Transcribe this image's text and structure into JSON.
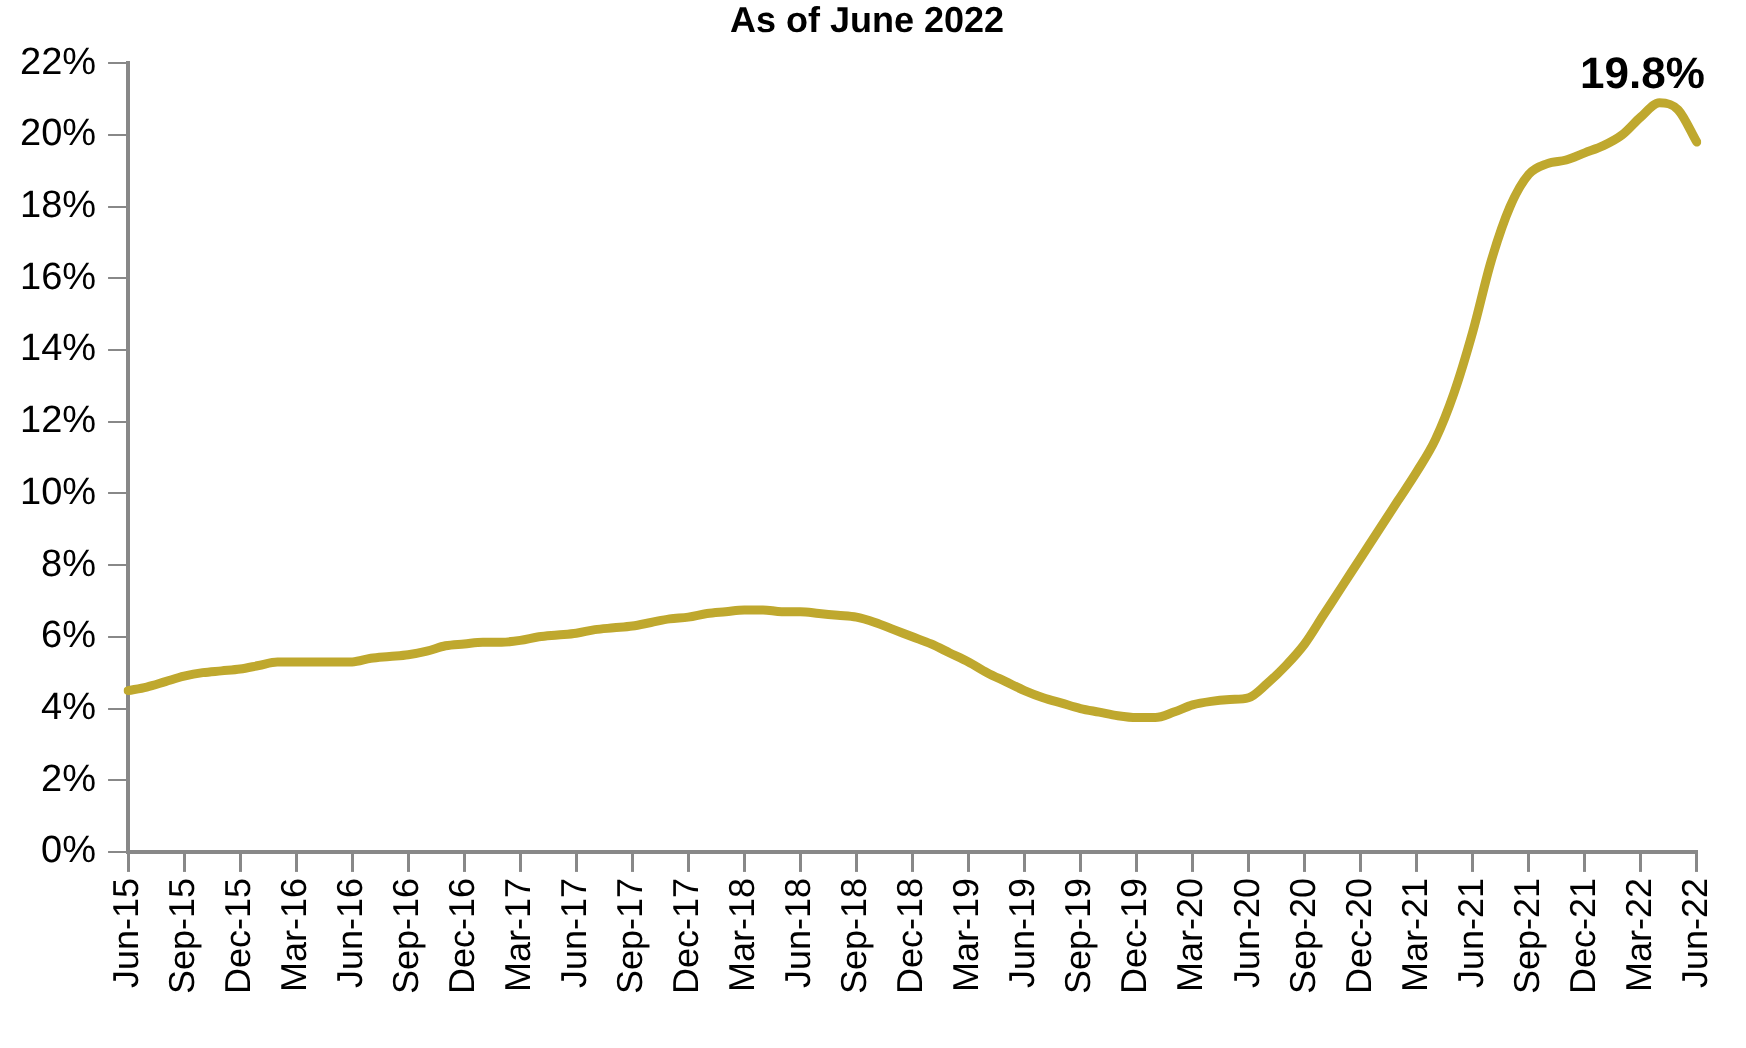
{
  "chart_data": {
    "type": "line",
    "title": "As of June 2022",
    "categories": [
      "Jun-15",
      null,
      null,
      "Sep-15",
      null,
      null,
      "Dec-15",
      null,
      null,
      "Mar-16",
      null,
      null,
      "Jun-16",
      null,
      null,
      "Sep-16",
      null,
      null,
      "Dec-16",
      null,
      null,
      "Mar-17",
      null,
      null,
      "Jun-17",
      null,
      null,
      "Sep-17",
      null,
      null,
      "Dec-17",
      null,
      null,
      "Mar-18",
      null,
      null,
      "Jun-18",
      null,
      null,
      "Sep-18",
      null,
      null,
      "Dec-18",
      null,
      null,
      "Mar-19",
      null,
      null,
      "Jun-19",
      null,
      null,
      "Sep-19",
      null,
      null,
      "Dec-19",
      null,
      null,
      "Mar-20",
      null,
      null,
      "Jun-20",
      null,
      null,
      "Sep-20",
      null,
      null,
      "Dec-20",
      null,
      null,
      "Mar-21",
      null,
      null,
      "Jun-21",
      null,
      null,
      "Sep-21",
      null,
      null,
      "Dec-21",
      null,
      null,
      "Mar-22",
      null,
      null,
      "Jun-22"
    ],
    "series": [
      {
        "color": "#bfa82e",
        "values": [
          4.5,
          4.6,
          4.75,
          4.9,
          5.0,
          5.05,
          5.1,
          5.2,
          5.3,
          5.3,
          5.3,
          5.3,
          5.3,
          5.4,
          5.45,
          5.5,
          5.6,
          5.75,
          5.8,
          5.85,
          5.85,
          5.9,
          6.0,
          6.05,
          6.1,
          6.2,
          6.25,
          6.3,
          6.4,
          6.5,
          6.55,
          6.65,
          6.7,
          6.75,
          6.75,
          6.7,
          6.7,
          6.65,
          6.6,
          6.55,
          6.4,
          6.2,
          6.0,
          5.8,
          5.55,
          5.3,
          5.0,
          4.75,
          4.5,
          4.3,
          4.15,
          4.0,
          3.9,
          3.8,
          3.75,
          3.75,
          3.9,
          4.1,
          4.2,
          4.25,
          4.3,
          4.7,
          5.2,
          5.8,
          6.6,
          7.4,
          8.2,
          9.0,
          9.8,
          10.6,
          11.5,
          12.8,
          14.5,
          16.5,
          18.0,
          18.9,
          19.2,
          19.3,
          19.5,
          19.7,
          20.0,
          20.5,
          20.9,
          20.7,
          19.8
        ],
        "value_labels": [
          null,
          null,
          null,
          null,
          null,
          null,
          null,
          null,
          null,
          null,
          null,
          null,
          null,
          null,
          null,
          null,
          null,
          null,
          null,
          null,
          null,
          null,
          null,
          null,
          null,
          null,
          null,
          null,
          null,
          null,
          null,
          null,
          null,
          null,
          null,
          null,
          null,
          null,
          null,
          null,
          null,
          null,
          null,
          null,
          null,
          null,
          null,
          null,
          null,
          null,
          null,
          null,
          null,
          null,
          null,
          null,
          null,
          null,
          null,
          null,
          null,
          null,
          null,
          null,
          null,
          null,
          null,
          null,
          null,
          null,
          null,
          null,
          null,
          null,
          null,
          null,
          null,
          null,
          null,
          null,
          null,
          null,
          null,
          null,
          "19.8%"
        ]
      }
    ],
    "ylim": [
      0,
      22
    ],
    "yticks": [
      {
        "value": 0,
        "label": "0%"
      },
      {
        "value": 2,
        "label": "2%"
      },
      {
        "value": 4,
        "label": "4%"
      },
      {
        "value": 6,
        "label": "6%"
      },
      {
        "value": 8,
        "label": "8%"
      },
      {
        "value": 10,
        "label": "10%"
      },
      {
        "value": 12,
        "label": "12%"
      },
      {
        "value": 14,
        "label": "14%"
      },
      {
        "value": 16,
        "label": "16%"
      },
      {
        "value": 18,
        "label": "18%"
      },
      {
        "value": 20,
        "label": "20%"
      },
      {
        "value": 22,
        "label": "22%"
      }
    ],
    "grid": false,
    "legend": false,
    "marker": "none",
    "line_style": "solid"
  }
}
